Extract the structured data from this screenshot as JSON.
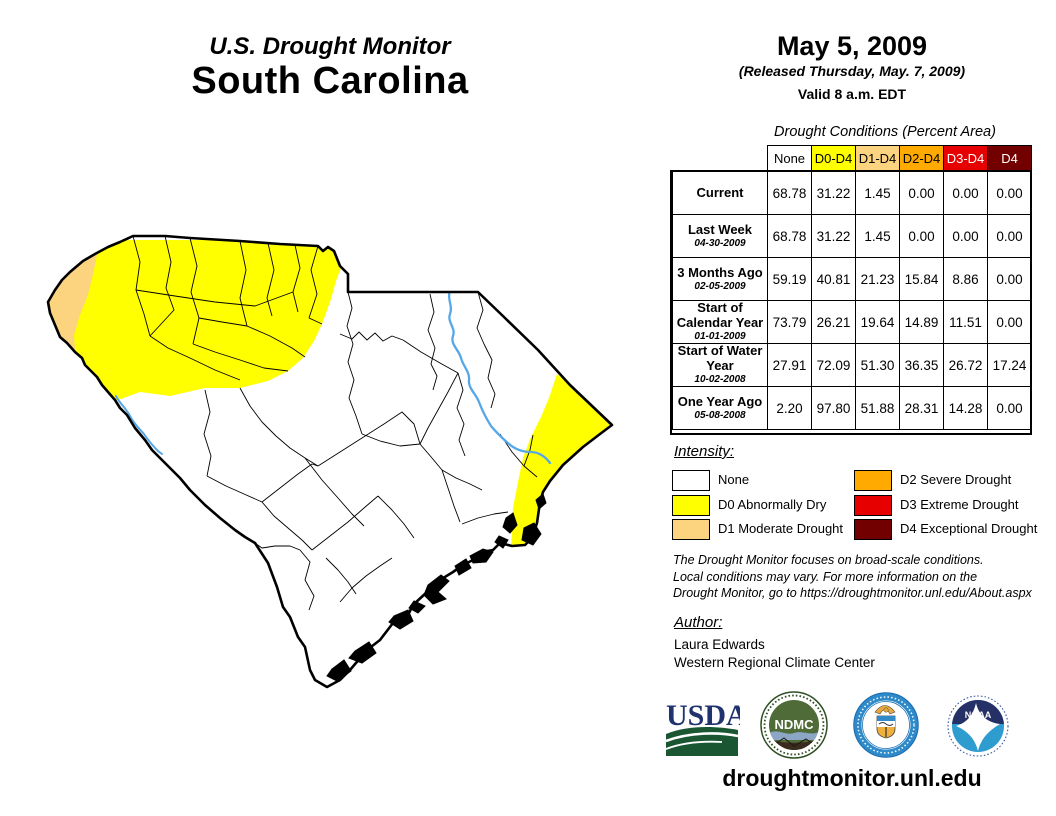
{
  "header": {
    "kicker": "U.S. Drought Monitor",
    "state": "South Carolina"
  },
  "date_block": {
    "date": "May 5, 2009",
    "released": "(Released Thursday, May. 7, 2009)",
    "valid": "Valid 8 a.m. EDT"
  },
  "table": {
    "title": "Drought Conditions (Percent Area)",
    "columns": [
      "None",
      "D0-D4",
      "D1-D4",
      "D2-D4",
      "D3-D4",
      "D4"
    ],
    "rows": [
      {
        "label": "Current",
        "date": "",
        "values": [
          "68.78",
          "31.22",
          "1.45",
          "0.00",
          "0.00",
          "0.00"
        ]
      },
      {
        "label": "Last Week",
        "date": "04-30-2009",
        "values": [
          "68.78",
          "31.22",
          "1.45",
          "0.00",
          "0.00",
          "0.00"
        ]
      },
      {
        "label": "3 Months Ago",
        "date": "02-05-2009",
        "values": [
          "59.19",
          "40.81",
          "21.23",
          "15.84",
          "8.86",
          "0.00"
        ]
      },
      {
        "label": "Start of Calendar Year",
        "date": "01-01-2009",
        "values": [
          "73.79",
          "26.21",
          "19.64",
          "14.89",
          "11.51",
          "0.00"
        ]
      },
      {
        "label": "Start of Water Year",
        "date": "10-02-2008",
        "values": [
          "27.91",
          "72.09",
          "51.30",
          "36.35",
          "26.72",
          "17.24"
        ]
      },
      {
        "label": "One Year Ago",
        "date": "05-08-2008",
        "values": [
          "2.20",
          "97.80",
          "51.88",
          "28.31",
          "14.28",
          "0.00"
        ]
      }
    ]
  },
  "legend": {
    "heading": "Intensity:",
    "items": [
      {
        "label": "None",
        "color": "#FFFFFF"
      },
      {
        "label": "D0 Abnormally Dry",
        "color": "#FFFF00"
      },
      {
        "label": "D1 Moderate Drought",
        "color": "#FCD37F"
      },
      {
        "label": "D2 Severe Drought",
        "color": "#FFAA00"
      },
      {
        "label": "D3 Extreme Drought",
        "color": "#E60000"
      },
      {
        "label": "D4 Exceptional Drought",
        "color": "#730000"
      }
    ]
  },
  "disclaimer": {
    "lines": [
      "The Drought Monitor focuses on broad-scale conditions.",
      "Local conditions may vary. For more information on the",
      "Drought Monitor, go to https://droughtmonitor.unl.edu/About.aspx"
    ]
  },
  "author": {
    "heading": "Author:",
    "name": "Laura Edwards",
    "org": "Western Regional Climate Center"
  },
  "logos": {
    "usda_label": "USDA",
    "ndmc_label": "NDMC",
    "noaa_label": "NOAA"
  },
  "footer": {
    "url": "droughtmonitor.unl.edu"
  },
  "map": {
    "colors": {
      "d0": "#FFFF00",
      "d1": "#FCD37F",
      "river": "#55A7E8",
      "none": "#FFFFFF"
    }
  }
}
